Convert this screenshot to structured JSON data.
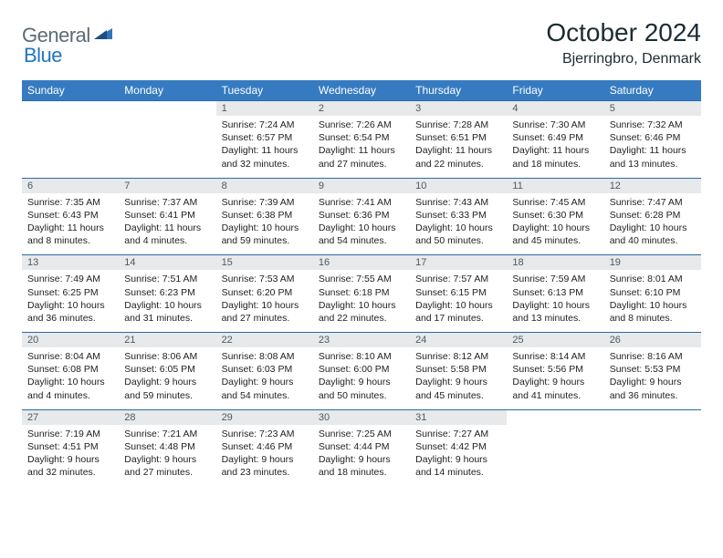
{
  "logo": {
    "part1": "General",
    "part2": "Blue"
  },
  "title": "October 2024",
  "location": "Bjerringbro, Denmark",
  "colors": {
    "header_bg": "#367bc1",
    "header_text": "#ffffff",
    "daynum_bg": "#e7e9ea",
    "daynum_text": "#4d5a63",
    "row_border": "#2a6aa6",
    "logo_gray": "#5c6b78",
    "logo_blue": "#2176bd",
    "title_color": "#1c2b33",
    "body_text": "#222222",
    "page_bg": "#ffffff"
  },
  "typography": {
    "title_fontsize": 28,
    "location_fontsize": 16,
    "weekday_fontsize": 12,
    "daynum_fontsize": 11,
    "cell_fontsize": 10.5,
    "logo_fontsize": 22
  },
  "layout": {
    "columns": 7,
    "rows": 5,
    "spacing": "collapse"
  },
  "weekdays": [
    "Sunday",
    "Monday",
    "Tuesday",
    "Wednesday",
    "Thursday",
    "Friday",
    "Saturday"
  ],
  "cells": [
    {
      "empty": true
    },
    {
      "empty": true
    },
    {
      "n": "1",
      "sr": "Sunrise: 7:24 AM",
      "ss": "Sunset: 6:57 PM",
      "dl": "Daylight: 11 hours and 32 minutes."
    },
    {
      "n": "2",
      "sr": "Sunrise: 7:26 AM",
      "ss": "Sunset: 6:54 PM",
      "dl": "Daylight: 11 hours and 27 minutes."
    },
    {
      "n": "3",
      "sr": "Sunrise: 7:28 AM",
      "ss": "Sunset: 6:51 PM",
      "dl": "Daylight: 11 hours and 22 minutes."
    },
    {
      "n": "4",
      "sr": "Sunrise: 7:30 AM",
      "ss": "Sunset: 6:49 PM",
      "dl": "Daylight: 11 hours and 18 minutes."
    },
    {
      "n": "5",
      "sr": "Sunrise: 7:32 AM",
      "ss": "Sunset: 6:46 PM",
      "dl": "Daylight: 11 hours and 13 minutes."
    },
    {
      "n": "6",
      "sr": "Sunrise: 7:35 AM",
      "ss": "Sunset: 6:43 PM",
      "dl": "Daylight: 11 hours and 8 minutes."
    },
    {
      "n": "7",
      "sr": "Sunrise: 7:37 AM",
      "ss": "Sunset: 6:41 PM",
      "dl": "Daylight: 11 hours and 4 minutes."
    },
    {
      "n": "8",
      "sr": "Sunrise: 7:39 AM",
      "ss": "Sunset: 6:38 PM",
      "dl": "Daylight: 10 hours and 59 minutes."
    },
    {
      "n": "9",
      "sr": "Sunrise: 7:41 AM",
      "ss": "Sunset: 6:36 PM",
      "dl": "Daylight: 10 hours and 54 minutes."
    },
    {
      "n": "10",
      "sr": "Sunrise: 7:43 AM",
      "ss": "Sunset: 6:33 PM",
      "dl": "Daylight: 10 hours and 50 minutes."
    },
    {
      "n": "11",
      "sr": "Sunrise: 7:45 AM",
      "ss": "Sunset: 6:30 PM",
      "dl": "Daylight: 10 hours and 45 minutes."
    },
    {
      "n": "12",
      "sr": "Sunrise: 7:47 AM",
      "ss": "Sunset: 6:28 PM",
      "dl": "Daylight: 10 hours and 40 minutes."
    },
    {
      "n": "13",
      "sr": "Sunrise: 7:49 AM",
      "ss": "Sunset: 6:25 PM",
      "dl": "Daylight: 10 hours and 36 minutes."
    },
    {
      "n": "14",
      "sr": "Sunrise: 7:51 AM",
      "ss": "Sunset: 6:23 PM",
      "dl": "Daylight: 10 hours and 31 minutes."
    },
    {
      "n": "15",
      "sr": "Sunrise: 7:53 AM",
      "ss": "Sunset: 6:20 PM",
      "dl": "Daylight: 10 hours and 27 minutes."
    },
    {
      "n": "16",
      "sr": "Sunrise: 7:55 AM",
      "ss": "Sunset: 6:18 PM",
      "dl": "Daylight: 10 hours and 22 minutes."
    },
    {
      "n": "17",
      "sr": "Sunrise: 7:57 AM",
      "ss": "Sunset: 6:15 PM",
      "dl": "Daylight: 10 hours and 17 minutes."
    },
    {
      "n": "18",
      "sr": "Sunrise: 7:59 AM",
      "ss": "Sunset: 6:13 PM",
      "dl": "Daylight: 10 hours and 13 minutes."
    },
    {
      "n": "19",
      "sr": "Sunrise: 8:01 AM",
      "ss": "Sunset: 6:10 PM",
      "dl": "Daylight: 10 hours and 8 minutes."
    },
    {
      "n": "20",
      "sr": "Sunrise: 8:04 AM",
      "ss": "Sunset: 6:08 PM",
      "dl": "Daylight: 10 hours and 4 minutes."
    },
    {
      "n": "21",
      "sr": "Sunrise: 8:06 AM",
      "ss": "Sunset: 6:05 PM",
      "dl": "Daylight: 9 hours and 59 minutes."
    },
    {
      "n": "22",
      "sr": "Sunrise: 8:08 AM",
      "ss": "Sunset: 6:03 PM",
      "dl": "Daylight: 9 hours and 54 minutes."
    },
    {
      "n": "23",
      "sr": "Sunrise: 8:10 AM",
      "ss": "Sunset: 6:00 PM",
      "dl": "Daylight: 9 hours and 50 minutes."
    },
    {
      "n": "24",
      "sr": "Sunrise: 8:12 AM",
      "ss": "Sunset: 5:58 PM",
      "dl": "Daylight: 9 hours and 45 minutes."
    },
    {
      "n": "25",
      "sr": "Sunrise: 8:14 AM",
      "ss": "Sunset: 5:56 PM",
      "dl": "Daylight: 9 hours and 41 minutes."
    },
    {
      "n": "26",
      "sr": "Sunrise: 8:16 AM",
      "ss": "Sunset: 5:53 PM",
      "dl": "Daylight: 9 hours and 36 minutes."
    },
    {
      "n": "27",
      "sr": "Sunrise: 7:19 AM",
      "ss": "Sunset: 4:51 PM",
      "dl": "Daylight: 9 hours and 32 minutes."
    },
    {
      "n": "28",
      "sr": "Sunrise: 7:21 AM",
      "ss": "Sunset: 4:48 PM",
      "dl": "Daylight: 9 hours and 27 minutes."
    },
    {
      "n": "29",
      "sr": "Sunrise: 7:23 AM",
      "ss": "Sunset: 4:46 PM",
      "dl": "Daylight: 9 hours and 23 minutes."
    },
    {
      "n": "30",
      "sr": "Sunrise: 7:25 AM",
      "ss": "Sunset: 4:44 PM",
      "dl": "Daylight: 9 hours and 18 minutes."
    },
    {
      "n": "31",
      "sr": "Sunrise: 7:27 AM",
      "ss": "Sunset: 4:42 PM",
      "dl": "Daylight: 9 hours and 14 minutes."
    },
    {
      "empty": true
    },
    {
      "empty": true
    }
  ]
}
